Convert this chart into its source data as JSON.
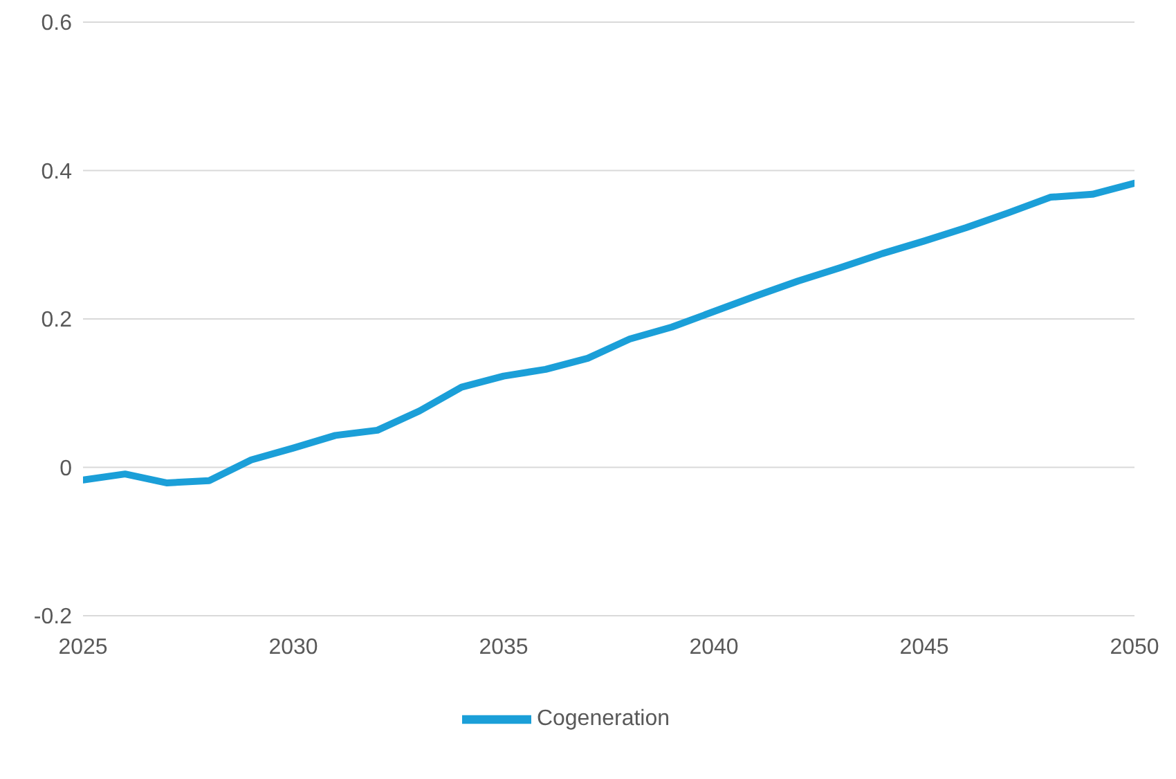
{
  "chart_data": {
    "type": "line",
    "x": [
      2025,
      2026,
      2027,
      2028,
      2029,
      2030,
      2031,
      2032,
      2033,
      2034,
      2035,
      2036,
      2037,
      2038,
      2039,
      2040,
      2041,
      2042,
      2043,
      2044,
      2045,
      2046,
      2047,
      2048,
      2049,
      2050
    ],
    "series": [
      {
        "name": "Cogeneration",
        "color": "#1b9fd8",
        "values": [
          -0.017,
          -0.009,
          -0.021,
          -0.018,
          0.01,
          0.026,
          0.043,
          0.05,
          0.076,
          0.108,
          0.123,
          0.132,
          0.147,
          0.173,
          0.189,
          0.21,
          0.231,
          0.251,
          0.269,
          0.288,
          0.305,
          0.323,
          0.343,
          0.364,
          0.368,
          0.383
        ]
      }
    ],
    "xlim": [
      2025,
      2050
    ],
    "xticks": [
      2025,
      2030,
      2035,
      2040,
      2045,
      2050
    ],
    "ylim": [
      -0.2,
      0.6
    ],
    "yticks": [
      -0.2,
      0,
      0.2,
      0.4,
      0.6
    ],
    "grid": "y",
    "legend": "bottom",
    "marker": "none",
    "line_style": "solid"
  }
}
